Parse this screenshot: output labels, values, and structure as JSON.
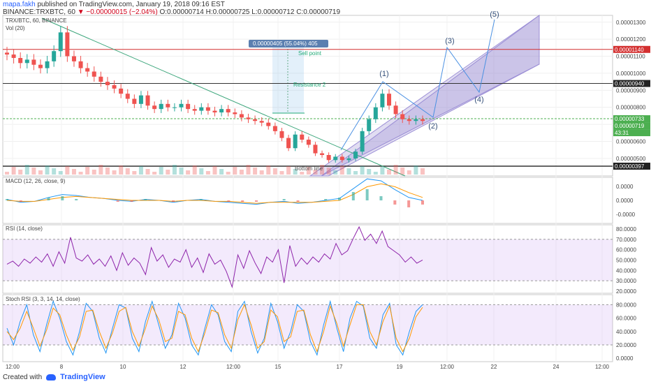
{
  "header": {
    "author": "mapa.fakh",
    "published": "published on TradingView.com, January 19, 2018 09:16 EST",
    "quote_prefix": "BINANCE:TRXBTC, 60",
    "change": "−0.00000015 (−2.04%)",
    "ohlc": "O:0.00000714 H:0.00000725 L:0.00000712 C:0.00000719"
  },
  "footer": {
    "created_with": "Created with",
    "brand": "TradingView"
  },
  "colors": {
    "up": "#26a69a",
    "down": "#ef5350",
    "channel": "#9c8fd6",
    "channel_fill": "rgba(149,133,210,0.28)",
    "trend": "#3aa57a",
    "rsi": "#8e24aa",
    "rsi_fill": "rgba(200,160,240,0.22)",
    "macd": "#2196f3",
    "signal": "#ff9800",
    "red_level": "#d32f2f",
    "black_level": "#333333",
    "green_level": "#4caf50"
  },
  "chart_data": [
    {
      "type": "candlestick",
      "title": "TRX/BTC, 60, BINANCE",
      "subtitle": "Vol (20)",
      "y_ticks": [
        "0.00001300",
        "0.00001200",
        "0.00001100",
        "0.00001000",
        "0.00000900",
        "0.00000800",
        "0.00000700",
        "0.00000600",
        "0.00000500"
      ],
      "ylim": [
        3.97e-06,
        1.34e-05
      ],
      "x_ticks": [
        "12:00",
        "8",
        "10",
        "12",
        "12:00",
        "15",
        "17",
        "19",
        "12:00",
        "22",
        "24",
        "12:00"
      ],
      "price_labels": [
        {
          "value": "0.00001140",
          "color": "#d32f2f",
          "text_color": "#ffffff"
        },
        {
          "value": "0.00000940",
          "color": "#222222",
          "text_color": "#ffffff"
        },
        {
          "value": "0.00000733",
          "color": "#4caf50",
          "text_color": "#ffffff"
        },
        {
          "value": "0.00000719",
          "color": "#4caf50",
          "text_color": "#ffffff"
        },
        {
          "value": "43:31",
          "color": "#4caf50",
          "text_color": "#ffffff"
        },
        {
          "value": "0.00000397",
          "color": "#222222",
          "text_color": "#ffffff"
        }
      ],
      "series_close": [
        1.11e-05,
        1.09e-05,
        1.06e-05,
        1.08e-05,
        1.05e-05,
        1.03e-05,
        1.07e-05,
        1.13e-05,
        1.24e-05,
        1.1e-05,
        1.07e-05,
        1.03e-05,
        1.01e-05,
        9.8e-06,
        9.5e-06,
        9.3e-06,
        9.1e-06,
        8.8e-06,
        8.5e-06,
        8.2e-06,
        8.7e-06,
        8.1e-06,
        7.9e-06,
        8.2e-06,
        8e-06,
        8e-06,
        8.2e-06,
        7.9e-06,
        7.8e-06,
        8e-06,
        7.8e-06,
        7.7e-06,
        7.9e-06,
        7.7e-06,
        7.6e-06,
        7.4e-06,
        7.3e-06,
        7.2e-06,
        7.1e-06,
        6.9e-06,
        6.6e-06,
        6.2e-06,
        5.6e-06,
        6.4e-06,
        6.1e-06,
        5.8e-06,
        5.3e-06,
        5.2e-06,
        4.9e-06,
        5.1e-06,
        4.9e-06,
        5e-06,
        5.4e-06,
        6.6e-06,
        7.3e-06,
        8e-06,
        8.8e-06,
        8.1e-06,
        7.6e-06,
        7.3e-06,
        7.2e-06,
        7.3e-06,
        7.2e-06
      ],
      "annotations": [
        {
          "text": "Resistance 2"
        },
        {
          "text": "Sell point"
        },
        {
          "text": "Bottom line"
        },
        {
          "text": "0.00000405 (55.04%) 405"
        },
        {
          "text": "(1)"
        },
        {
          "text": "(2)"
        },
        {
          "text": "(3)"
        },
        {
          "text": "(4)"
        },
        {
          "text": "(5)"
        }
      ]
    },
    {
      "type": "line",
      "title": "MACD (12, 26, close, 9)",
      "y_ticks": [
        "0.0000",
        "0.0000",
        "-0.0000"
      ],
      "series": [
        {
          "name": "MACD",
          "values": [
            0.1,
            -0.2,
            -0.1,
            0.3,
            0.6,
            0.5,
            0.3,
            0.2,
            0.0,
            -0.1,
            0.1,
            0.0,
            -0.2,
            0.0,
            0.1,
            -0.1,
            -0.2,
            -0.3,
            -0.4,
            -0.2,
            -0.1,
            -0.3,
            -0.2,
            0.0,
            0.2,
            1.2,
            2.2,
            2.0,
            1.1,
            0.3,
            0.0
          ]
        },
        {
          "name": "Signal",
          "values": [
            0.0,
            -0.1,
            -0.1,
            0.1,
            0.3,
            0.4,
            0.3,
            0.2,
            0.1,
            0.0,
            0.0,
            0.0,
            -0.1,
            0.0,
            0.0,
            -0.1,
            -0.1,
            -0.2,
            -0.3,
            -0.2,
            -0.2,
            -0.2,
            -0.2,
            -0.1,
            0.0,
            0.6,
            1.4,
            1.7,
            1.4,
            0.8,
            0.3
          ]
        }
      ]
    },
    {
      "type": "line",
      "title": "RSI (14, close)",
      "y_ticks": [
        "80.0000",
        "70.0000",
        "60.0000",
        "50.0000",
        "40.0000",
        "30.0000",
        "20.0000"
      ],
      "ylim": [
        18,
        84
      ],
      "band": [
        30,
        70
      ],
      "series": [
        {
          "name": "RSI",
          "values": [
            46,
            49,
            44,
            51,
            47,
            53,
            48,
            56,
            44,
            58,
            47,
            72,
            52,
            49,
            55,
            46,
            51,
            44,
            54,
            40,
            57,
            45,
            52,
            47,
            36,
            62,
            49,
            55,
            43,
            51,
            48,
            60,
            43,
            52,
            38,
            56,
            46,
            50,
            39,
            24,
            55,
            42,
            59,
            47,
            37,
            53,
            48,
            60,
            28,
            64,
            44,
            52,
            46,
            53,
            48,
            56,
            51,
            66,
            55,
            59,
            71,
            82,
            69,
            75,
            66,
            78,
            63,
            59,
            55,
            48,
            53,
            47,
            50
          ]
        }
      ]
    },
    {
      "type": "line",
      "title": "Stoch RSI (3, 3, 14, 14, close)",
      "y_ticks": [
        "80.0000",
        "60.0000",
        "40.0000",
        "20.0000",
        "0.0000"
      ],
      "ylim": [
        -5,
        95
      ],
      "band": [
        20,
        80
      ],
      "series": [
        {
          "name": "K",
          "values": [
            45,
            20,
            55,
            80,
            35,
            10,
            50,
            85,
            60,
            25,
            5,
            40,
            82,
            70,
            30,
            8,
            45,
            80,
            75,
            30,
            10,
            55,
            85,
            50,
            15,
            35,
            82,
            60,
            20,
            5,
            45,
            80,
            65,
            25,
            10,
            70,
            85,
            40,
            8,
            30,
            82,
            55,
            15,
            40,
            80,
            70,
            25,
            5,
            50,
            85,
            45,
            10,
            60,
            85,
            78,
            30,
            15,
            65,
            82,
            20,
            5,
            40,
            70,
            80
          ]
        },
        {
          "name": "D",
          "values": [
            40,
            28,
            45,
            70,
            45,
            18,
            42,
            75,
            65,
            35,
            12,
            32,
            70,
            72,
            40,
            15,
            38,
            70,
            76,
            40,
            18,
            45,
            78,
            58,
            25,
            30,
            70,
            65,
            30,
            10,
            38,
            72,
            68,
            35,
            15,
            58,
            80,
            50,
            15,
            25,
            72,
            62,
            25,
            32,
            70,
            72,
            35,
            10,
            40,
            78,
            52,
            18,
            50,
            80,
            80,
            40,
            20,
            55,
            78,
            30,
            10,
            30,
            62,
            76
          ]
        }
      ]
    }
  ]
}
